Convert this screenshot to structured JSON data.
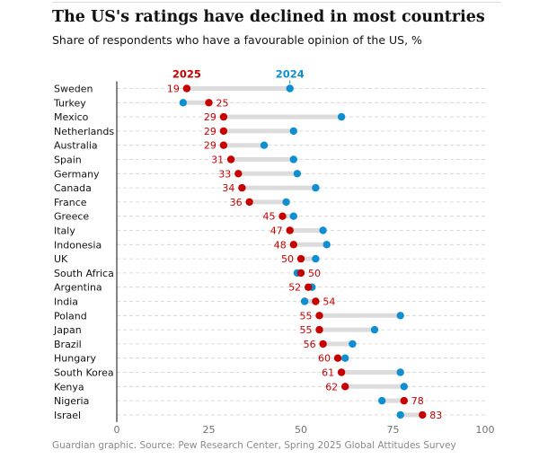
{
  "title": "The US's ratings have declined in most countries",
  "subtitle": "Share of respondents who have a favourable opinion of the US, %",
  "source": "Guardian graphic. Source: Pew Research Center, Spring 2025 Global Attitudes Survey",
  "colors": {
    "y2025": "#c70000",
    "y2024": "#0f8fd2",
    "connector": "#dcdcdc",
    "grid": "#d0d0d0",
    "axis": "#333333",
    "text": "#121212",
    "tick": "#707070"
  },
  "chart_data": {
    "type": "dumbbell",
    "xlim": [
      0,
      100
    ],
    "xticks": [
      "0",
      "25",
      "50",
      "75",
      "100"
    ],
    "xtick_values": [
      0,
      25,
      50,
      75,
      100
    ],
    "legend": {
      "y2025": "2025",
      "y2024": "2024"
    },
    "series": [
      {
        "name": "2025",
        "values": [
          19,
          25,
          29,
          29,
          29,
          31,
          33,
          34,
          36,
          45,
          47,
          48,
          50,
          50,
          52,
          54,
          55,
          55,
          56,
          60,
          61,
          62,
          78,
          83
        ]
      },
      {
        "name": "2024",
        "values": [
          47,
          18,
          61,
          48,
          40,
          48,
          49,
          54,
          46,
          48,
          56,
          57,
          54,
          49,
          53,
          51,
          77,
          70,
          64,
          62,
          77,
          78,
          72,
          77
        ]
      }
    ],
    "categories": [
      "Sweden",
      "Turkey",
      "Mexico",
      "Netherlands",
      "Australia",
      "Spain",
      "Germany",
      "Canada",
      "France",
      "Greece",
      "Italy",
      "Indonesia",
      "UK",
      "South Africa",
      "Argentina",
      "India",
      "Poland",
      "Japan",
      "Brazil",
      "Hungary",
      "South Korea",
      "Kenya",
      "Nigeria",
      "Israel"
    ],
    "data_labels": [
      "19",
      "25",
      "29",
      "29",
      "29",
      "31",
      "33",
      "34",
      "36",
      "45",
      "47",
      "48",
      "50",
      "50",
      "52",
      "54",
      "55",
      "55",
      "56",
      "60",
      "61",
      "62",
      "78",
      "83"
    ]
  }
}
